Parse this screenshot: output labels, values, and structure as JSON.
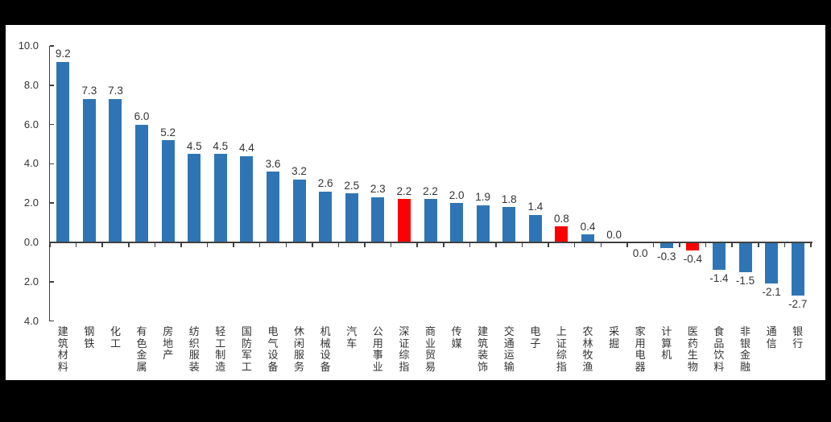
{
  "chart_data": {
    "type": "bar",
    "title": "",
    "xlabel": "",
    "ylabel": "",
    "categories": [
      "建筑材料",
      "钢铁",
      "化工",
      "有色金属",
      "房地产",
      "纺织服装",
      "轻工制造",
      "国防军工",
      "电气设备",
      "休闲服务",
      "机械设备",
      "汽车",
      "公用事业",
      "深证综指",
      "商业贸易",
      "传媒",
      "建筑装饰",
      "交通运输",
      "电子",
      "上证综指",
      "农林牧渔",
      "采掘",
      "家用电器",
      "计算机",
      "医药生物",
      "食品饮料",
      "非银金融",
      "通信",
      "银行"
    ],
    "values": [
      9.2,
      7.3,
      7.3,
      6.0,
      5.2,
      4.5,
      4.5,
      4.4,
      3.6,
      3.2,
      2.6,
      2.5,
      2.3,
      2.2,
      2.2,
      2.0,
      1.9,
      1.8,
      1.4,
      0.8,
      0.4,
      0.0,
      0.0,
      -0.3,
      -0.4,
      -1.4,
      -1.5,
      -2.1,
      -2.7
    ],
    "value_labels": [
      "9.2",
      "7.3",
      "7.3",
      "6.0",
      "5.2",
      "4.5",
      "4.5",
      "4.4",
      "3.6",
      "3.2",
      "2.6",
      "2.5",
      "2.3",
      "2.2",
      "2.2",
      "2.0",
      "1.9",
      "1.8",
      "1.4",
      "0.8",
      "0.4",
      "0.0",
      "0.0",
      "-0.3",
      "-0.4",
      "-1.4",
      "-1.5",
      "-2.1",
      "-2.7"
    ],
    "highlight_indices": [
      13,
      19,
      24
    ],
    "label_below_indices": [
      22
    ],
    "ytick_values": [
      10,
      8,
      6,
      4,
      2,
      0,
      -2,
      -4
    ],
    "ytick_labels": [
      "10.0",
      "8.0",
      "6.0",
      "4.0",
      "2.0",
      "0.0",
      "2.0",
      "4.0"
    ],
    "ylim": [
      -4,
      10
    ],
    "grid": false,
    "legend": null,
    "colors": {
      "bar": "#2F75B5",
      "highlight": "#FF0000",
      "axis": "#404040",
      "text": "#333333",
      "panel_background": "#FFFFFF",
      "outer_background": "#000000"
    }
  }
}
